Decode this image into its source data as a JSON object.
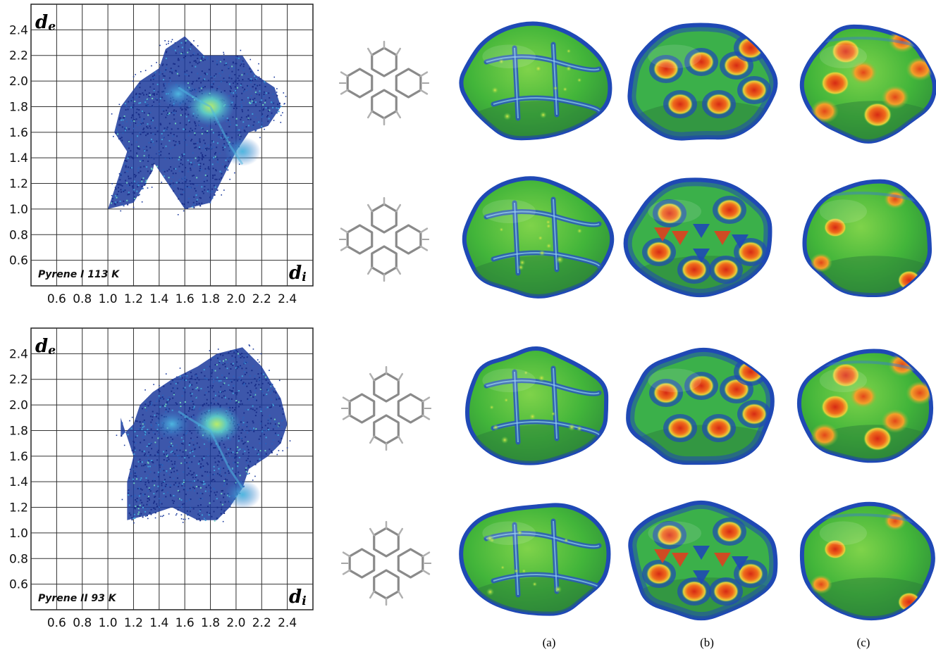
{
  "figure": {
    "panel_labels": [
      "(a)",
      "(b)",
      "(c)"
    ]
  },
  "chart_data": [
    {
      "type": "scatter",
      "label": "Pyrene I 113 K",
      "x_axis_letter": "d",
      "x_axis_subscript": "i",
      "y_axis_letter": "d",
      "y_axis_subscript": "e",
      "xlim": [
        0.4,
        2.6
      ],
      "ylim": [
        0.4,
        2.6
      ],
      "grid": true,
      "x_ticks": [
        "0.6",
        "0.8",
        "1.0",
        "1.2",
        "1.4",
        "1.6",
        "1.8",
        "2.0",
        "2.2",
        "2.4"
      ],
      "y_ticks": [
        "0.6",
        "0.8",
        "1.0",
        "1.2",
        "1.4",
        "1.6",
        "1.8",
        "2.0",
        "2.2",
        "2.4"
      ],
      "outline": [
        [
          1.0,
          1.0
        ],
        [
          1.2,
          1.05
        ],
        [
          1.35,
          1.3
        ],
        [
          1.4,
          1.55
        ],
        [
          1.3,
          1.45
        ],
        [
          1.6,
          1.0
        ],
        [
          1.8,
          1.05
        ],
        [
          1.9,
          1.25
        ],
        [
          2.0,
          1.45
        ],
        [
          2.1,
          1.6
        ],
        [
          2.25,
          1.65
        ],
        [
          2.35,
          1.8
        ],
        [
          2.3,
          1.95
        ],
        [
          2.15,
          2.05
        ],
        [
          2.05,
          2.2
        ],
        [
          1.9,
          2.2
        ],
        [
          1.75,
          2.2
        ],
        [
          1.6,
          2.35
        ],
        [
          1.45,
          2.25
        ],
        [
          1.4,
          2.1
        ],
        [
          1.25,
          2.0
        ],
        [
          1.1,
          1.8
        ],
        [
          1.05,
          1.6
        ],
        [
          1.15,
          1.45
        ]
      ],
      "hotspots": [
        {
          "x": 1.8,
          "y": 1.8,
          "level": "high"
        },
        {
          "x": 1.55,
          "y": 1.9,
          "level": "medium"
        },
        {
          "x": 2.05,
          "y": 1.45,
          "level": "medium"
        }
      ]
    },
    {
      "type": "scatter",
      "label": "Pyrene II 93 K",
      "x_axis_letter": "d",
      "x_axis_subscript": "i",
      "y_axis_letter": "d",
      "y_axis_subscript": "e",
      "xlim": [
        0.4,
        2.6
      ],
      "ylim": [
        0.4,
        2.6
      ],
      "grid": true,
      "x_ticks": [
        "0.6",
        "0.8",
        "1.0",
        "1.2",
        "1.4",
        "1.6",
        "1.8",
        "2.0",
        "2.2",
        "2.4"
      ],
      "y_ticks": [
        "0.6",
        "0.8",
        "1.0",
        "1.2",
        "1.4",
        "1.6",
        "1.8",
        "2.0",
        "2.2",
        "2.4"
      ],
      "outline": [
        [
          1.15,
          1.1
        ],
        [
          1.35,
          1.15
        ],
        [
          1.5,
          1.2
        ],
        [
          1.7,
          1.1
        ],
        [
          1.85,
          1.1
        ],
        [
          1.95,
          1.2
        ],
        [
          2.05,
          1.35
        ],
        [
          2.1,
          1.5
        ],
        [
          2.25,
          1.6
        ],
        [
          2.35,
          1.7
        ],
        [
          2.4,
          1.85
        ],
        [
          2.35,
          2.05
        ],
        [
          2.2,
          2.3
        ],
        [
          2.05,
          2.45
        ],
        [
          1.85,
          2.4
        ],
        [
          1.7,
          2.3
        ],
        [
          1.5,
          2.2
        ],
        [
          1.35,
          2.1
        ],
        [
          1.25,
          2.0
        ],
        [
          1.2,
          1.85
        ],
        [
          1.1,
          1.75
        ],
        [
          1.1,
          1.9
        ],
        [
          1.2,
          1.6
        ],
        [
          1.15,
          1.4
        ]
      ],
      "hotspots": [
        {
          "x": 1.85,
          "y": 1.85,
          "level": "high"
        },
        {
          "x": 1.5,
          "y": 1.85,
          "level": "medium"
        },
        {
          "x": 2.05,
          "y": 1.3,
          "level": "medium"
        }
      ]
    }
  ],
  "colors": {
    "fp_low": "#1b3a9c",
    "fp_mid": "#3f9fd8",
    "fp_high": "#9de07a",
    "surface_green": "#4bbf3f",
    "surface_blue": "#1f49b5",
    "surface_red": "#e0401f",
    "surface_yellow": "#e8e040",
    "molecule": "#8a8a8a"
  }
}
